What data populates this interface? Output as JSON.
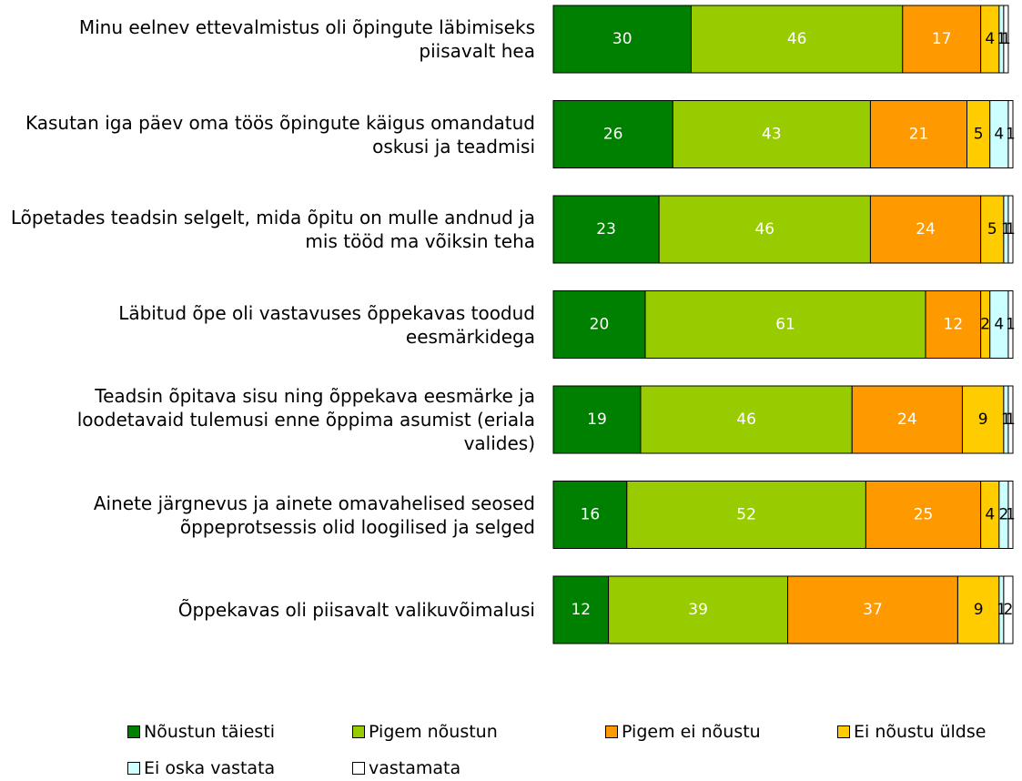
{
  "chart_data": {
    "type": "stacked_barh",
    "categories": [
      "Minu eelnev ettevalmistus oli õpingute läbimiseks piisavalt hea",
      "Kasutan iga päev oma töös õpingute käigus omandatud oskusi ja teadmisi",
      "Lõpetades teadsin selgelt, mida õpitu on mulle andnud ja mis tööd ma võiksin teha",
      "Läbitud õpe oli vastavuses õppekavas toodud eesmärkidega",
      "Teadsin õpitava sisu ning õppekava eesmärke ja loodetavaid tulemusi enne õppima asumist (eriala valides)",
      "Ainete järgnevus ja ainete omavahelised seosed õppeprotsessis olid loogilised ja selged",
      "Õppekavas oli piisavalt valikuvõimalusi"
    ],
    "series": [
      {
        "name": "Nõustun täiesti",
        "color": "#008000",
        "values": [
          30,
          26,
          23,
          20,
          19,
          16,
          12
        ]
      },
      {
        "name": "Pigem nõustun",
        "color": "#99cc00",
        "values": [
          46,
          43,
          46,
          61,
          46,
          52,
          39
        ]
      },
      {
        "name": "Pigem ei nõustu",
        "color": "#ff9900",
        "values": [
          17,
          21,
          24,
          12,
          24,
          25,
          37
        ]
      },
      {
        "name": "Ei nõustu üldse",
        "color": "#ffcc00",
        "values": [
          4,
          5,
          5,
          2,
          9,
          4,
          9
        ]
      },
      {
        "name": "Ei oska vastata",
        "color": "#ccffff",
        "values": [
          1,
          4,
          1,
          4,
          1,
          2,
          1
        ]
      },
      {
        "name": "vastamata",
        "color": "#ffffff",
        "values": [
          1,
          1,
          1,
          1,
          1,
          1,
          2
        ]
      }
    ],
    "xlim": [
      0,
      100
    ]
  }
}
